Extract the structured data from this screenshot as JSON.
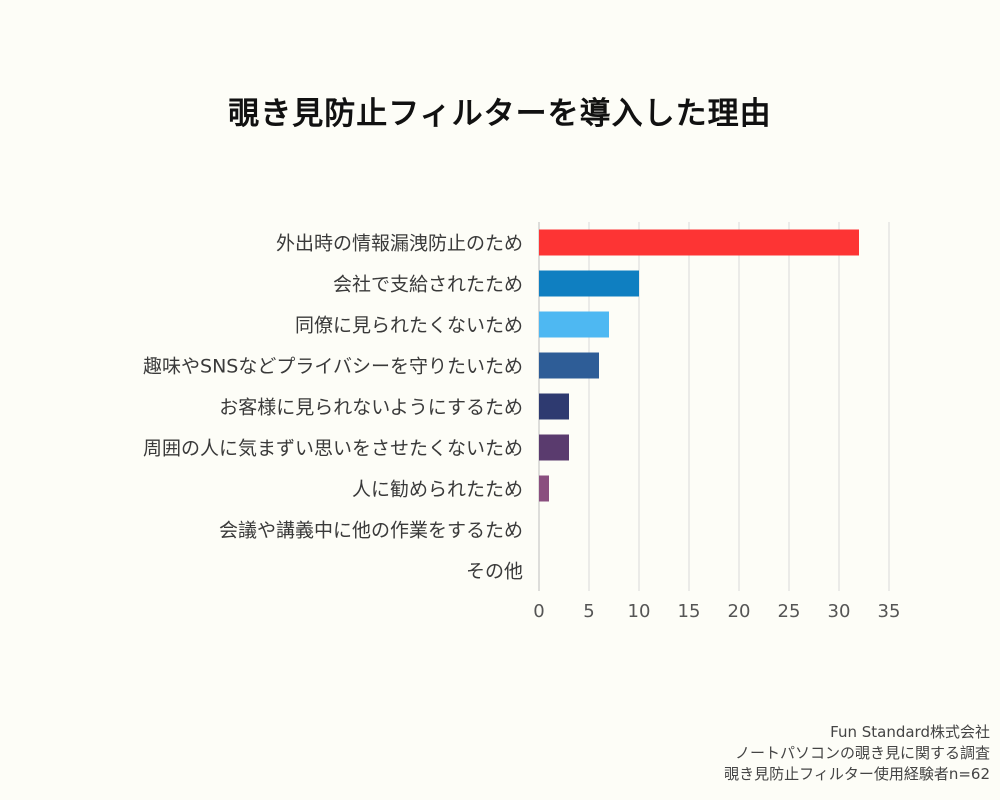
{
  "chart_data": {
    "type": "bar",
    "orientation": "horizontal",
    "title": "覗き見防止フィルターを導入した理由",
    "categories": [
      "外出時の情報漏洩防止のため",
      "会社で支給されたため",
      "同僚に見られたくないため",
      "趣味やSNSなどプライバシーを守りたいため",
      "お客様に見られないようにするため",
      "周囲の人に気まずい思いをさせたくないため",
      "人に勧められたため",
      "会議や講義中に他の作業をするため",
      "その他"
    ],
    "values": [
      32,
      10,
      7,
      6,
      3,
      3,
      1,
      0,
      0
    ],
    "colors": [
      "#fd3434",
      "#0f7fc1",
      "#4eb8f2",
      "#2e5d97",
      "#2e3a70",
      "#5a3b6e",
      "#8a4f7f",
      "#999999",
      "#999999"
    ],
    "xlim": [
      0,
      35
    ],
    "xticks": [
      0,
      5,
      10,
      15,
      20,
      25,
      30,
      35
    ],
    "grid": true,
    "xlabel": "",
    "ylabel": ""
  },
  "source": {
    "company": "Fun Standard株式会社",
    "survey": "ノートパソコンの覗き見に関する調査",
    "sample": "覗き見防止フィルター使用経験者n=62"
  }
}
